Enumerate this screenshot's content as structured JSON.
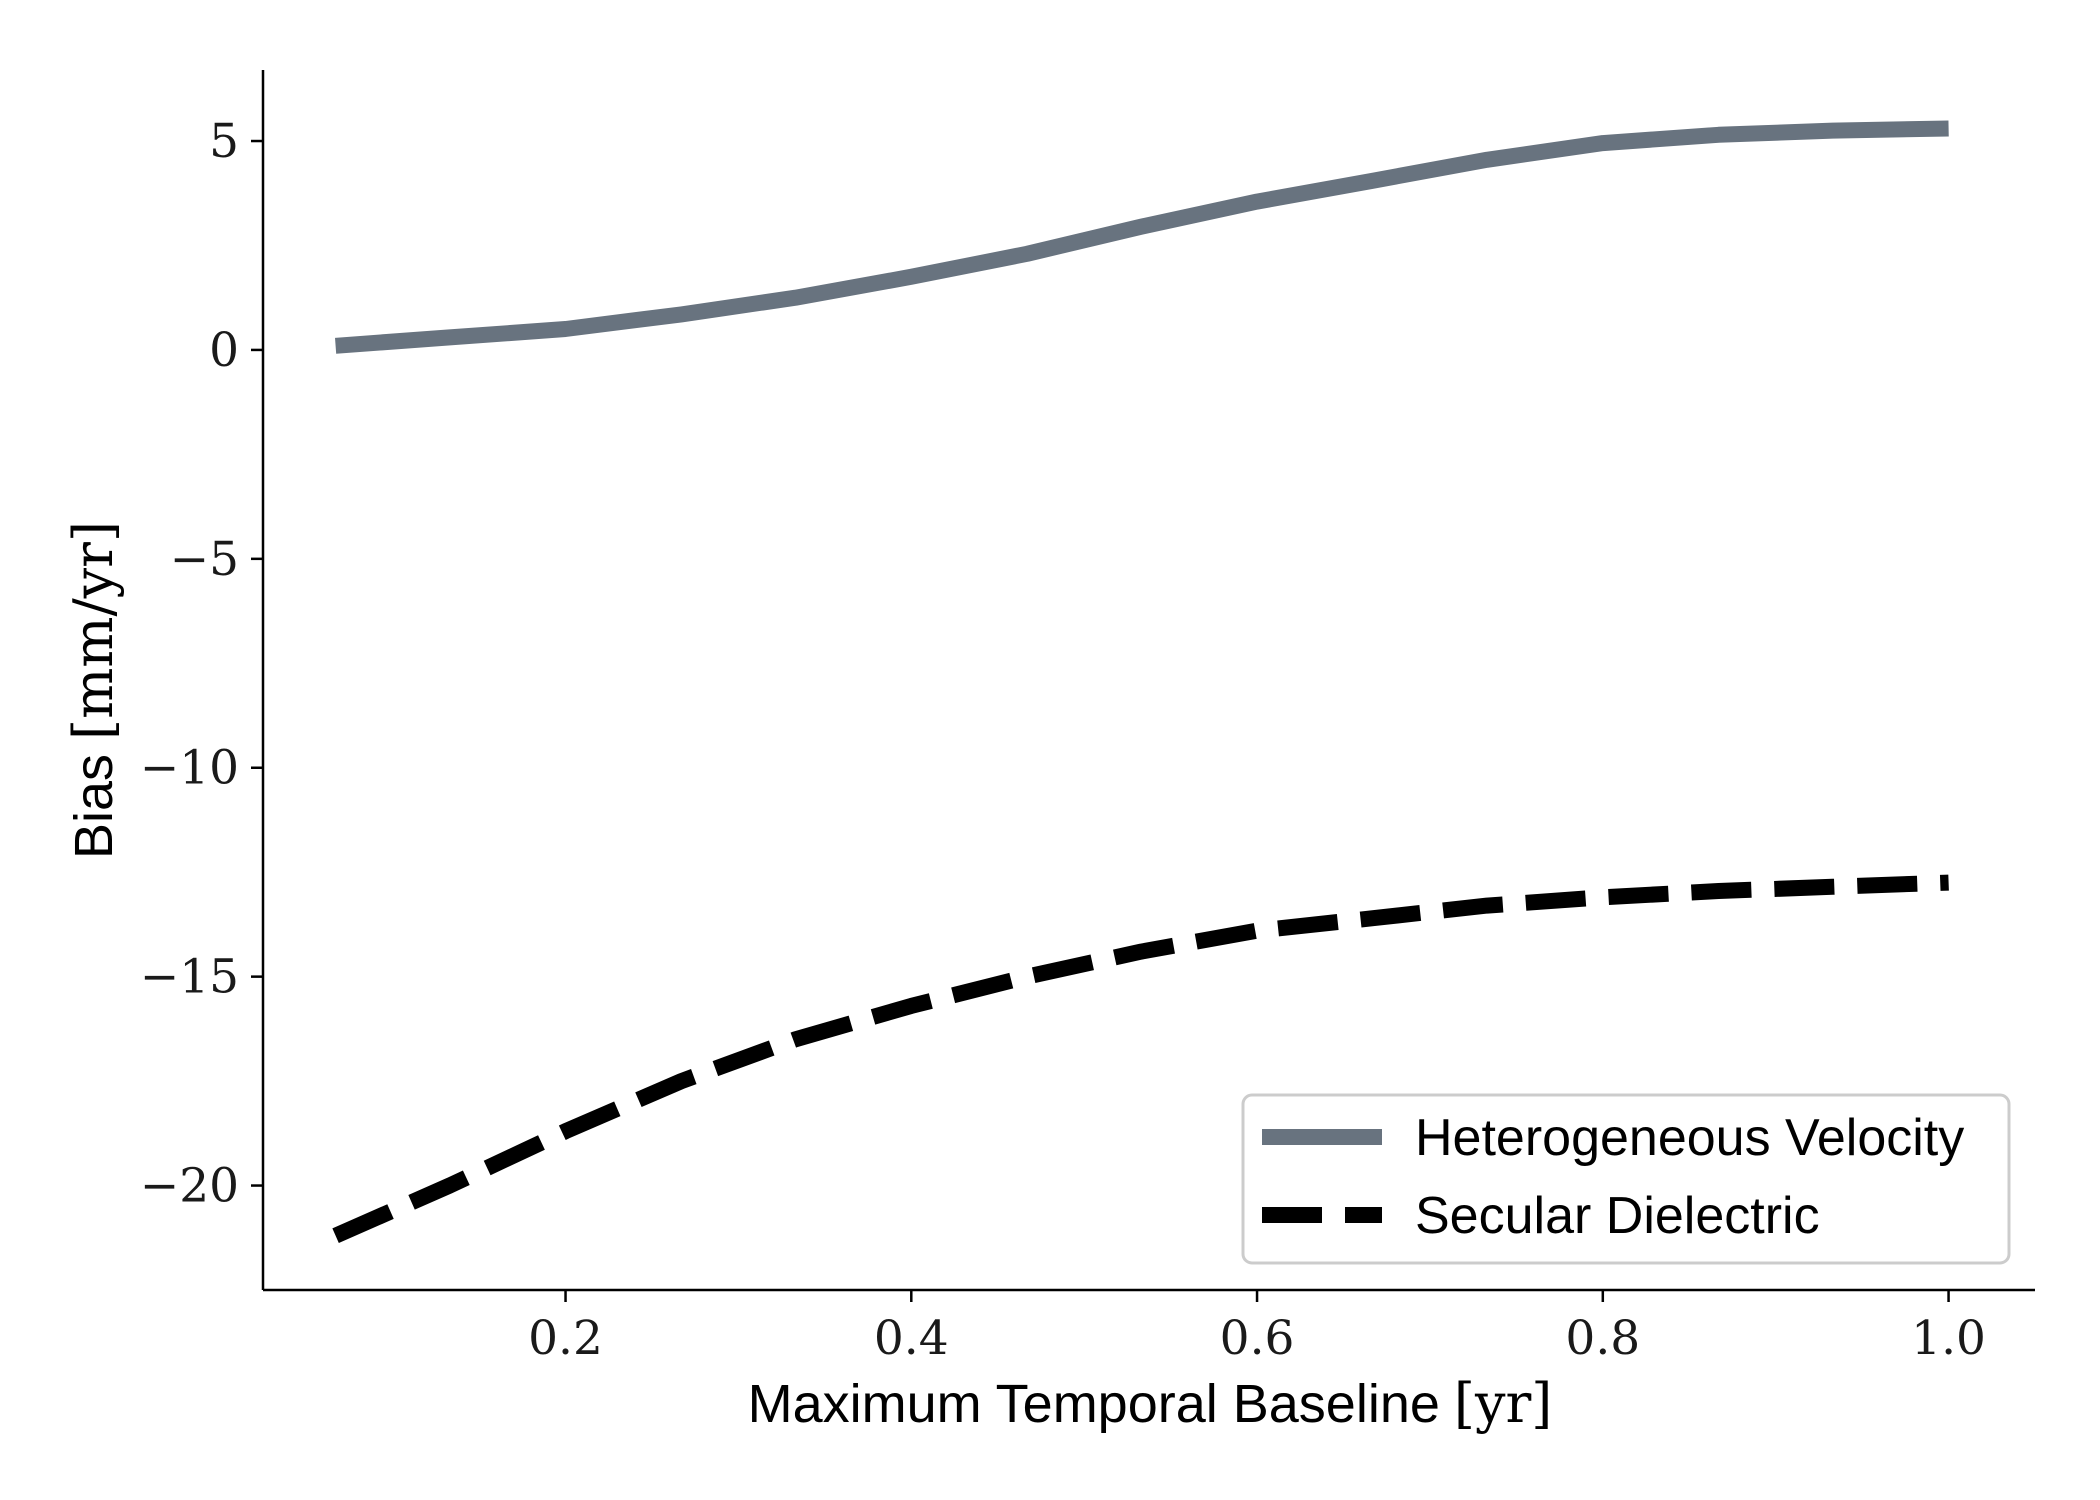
{
  "chart_data": {
    "type": "line",
    "xlabel": "Maximum Temporal Baseline [yr]",
    "xlabel_main": "Maximum Temporal Baseline",
    "xlabel_unit": "[yr]",
    "ylabel": "Bias [mm/yr]",
    "ylabel_main": "Bias",
    "ylabel_unit": "[mm/yr]",
    "xlim": [
      0.025,
      1.05
    ],
    "ylim": [
      -22.5,
      6.7
    ],
    "xticks": [
      0.2,
      0.4,
      0.6,
      0.8,
      1.0
    ],
    "xtick_labels": [
      "0.2",
      "0.4",
      "0.6",
      "0.8",
      "1.0"
    ],
    "yticks": [
      5,
      0,
      -5,
      -10,
      -15,
      -20
    ],
    "ytick_labels": [
      "5",
      "0",
      "−5",
      "−10",
      "−15",
      "−20"
    ],
    "grid": false,
    "legend_position": "lower-right",
    "x": [
      0.067,
      0.133,
      0.2,
      0.267,
      0.333,
      0.4,
      0.467,
      0.533,
      0.6,
      0.667,
      0.733,
      0.8,
      0.867,
      0.933,
      1.0
    ],
    "series": [
      {
        "name": "Heterogeneous Velocity",
        "color": "#68737f",
        "style": "solid",
        "values": [
          0.1,
          0.3,
          0.5,
          0.85,
          1.25,
          1.75,
          2.3,
          2.95,
          3.55,
          4.05,
          4.55,
          4.95,
          5.15,
          5.25,
          5.3
        ]
      },
      {
        "name": "Secular Dielectric",
        "color": "#000000",
        "style": "dashed",
        "values": [
          -21.2,
          -20.0,
          -18.7,
          -17.5,
          -16.5,
          -15.7,
          -15.0,
          -14.4,
          -13.9,
          -13.6,
          -13.3,
          -13.1,
          -12.95,
          -12.85,
          -12.75
        ]
      }
    ]
  }
}
